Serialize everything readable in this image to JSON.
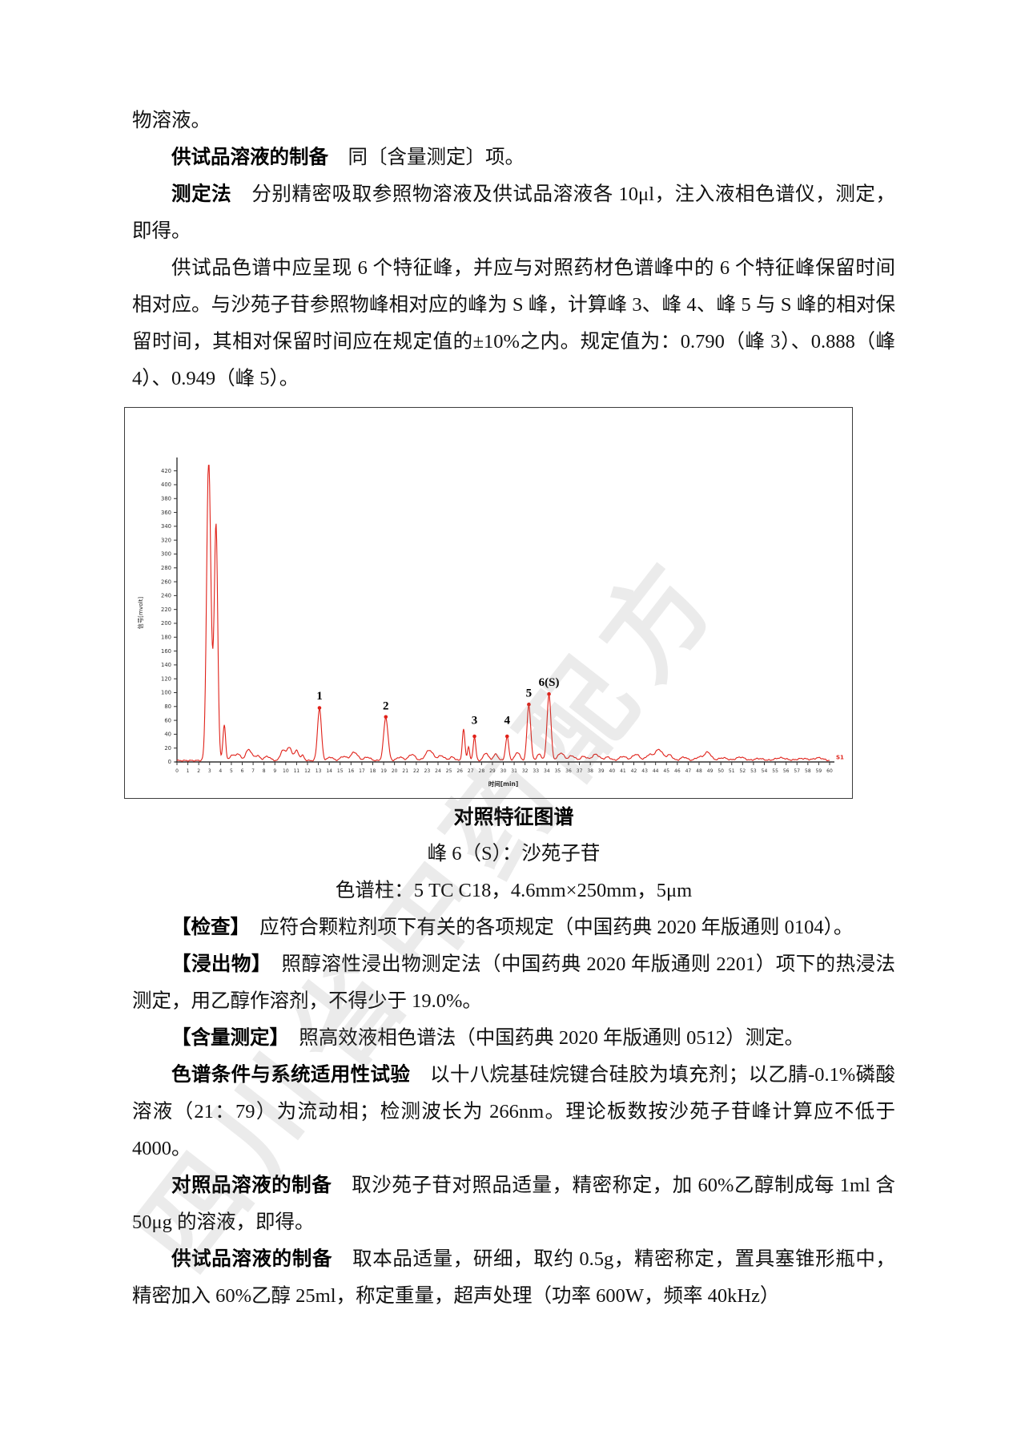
{
  "watermark": {
    "text": "四川省中药配方"
  },
  "paragraphs_top": [
    {
      "indent": false,
      "segments": [
        {
          "t": "物溶液。",
          "b": false
        }
      ]
    },
    {
      "indent": true,
      "segments": [
        {
          "t": "供试品溶液的制备",
          "b": true
        },
        {
          "t": "　同〔含量测定〕项。",
          "b": false
        }
      ]
    },
    {
      "indent": true,
      "segments": [
        {
          "t": "测定法",
          "b": true
        },
        {
          "t": "　分别精密吸取参照物溶液及供试品溶液各 10μl，注入液相色谱仪，测定，即得。",
          "b": false
        }
      ]
    },
    {
      "indent": true,
      "segments": [
        {
          "t": "供试品色谱中应呈现 6 个特征峰，并应与对照药材色谱峰中的 6 个特征峰保留时间相对应。与沙苑子苷参照物峰相对应的峰为 S 峰，计算峰 3、峰 4、峰 5 与 S 峰的相对保留时间，其相对保留时间应在规定值的±10%之内。规定值为：0.790（峰 3）、0.888（峰 4）、0.949（峰 5）。",
          "b": false
        }
      ]
    }
  ],
  "figure": {
    "caption_title": "对照特征图谱",
    "caption_peak": "峰 6（S）：沙苑子苷",
    "caption_column": "色谱柱：5 TC C18，4.6mm×250mm，5μm"
  },
  "paragraphs_bottom": [
    {
      "indent": true,
      "segments": [
        {
          "t": "【检查】",
          "b": true
        },
        {
          "t": "　应符合颗粒剂项下有关的各项规定（中国药典 2020 年版通则 0104）。",
          "b": false
        }
      ]
    },
    {
      "indent": true,
      "segments": [
        {
          "t": "【浸出物】",
          "b": true
        },
        {
          "t": "　照醇溶性浸出物测定法（中国药典 2020 年版通则 2201）项下的热浸法测定，用乙醇作溶剂，不得少于 19.0%。",
          "b": false
        }
      ]
    },
    {
      "indent": true,
      "segments": [
        {
          "t": "【含量测定】",
          "b": true
        },
        {
          "t": "　照高效液相色谱法（中国药典 2020 年版通则 0512）测定。",
          "b": false
        }
      ]
    },
    {
      "indent": true,
      "segments": [
        {
          "t": "色谱条件与系统适用性试验",
          "b": true
        },
        {
          "t": "　以十八烷基硅烷键合硅胶为填充剂；以乙腈-0.1%磷酸溶液（21：79）为流动相；检测波长为 266nm。理论板数按沙苑子苷峰计算应不低于 4000。",
          "b": false
        }
      ]
    },
    {
      "indent": true,
      "segments": [
        {
          "t": "对照品溶液的制备",
          "b": true
        },
        {
          "t": "　取沙苑子苷对照品适量，精密称定，加 60%乙醇制成每 1ml 含 50μg 的溶液，即得。",
          "b": false
        }
      ]
    },
    {
      "indent": true,
      "segments": [
        {
          "t": "供试品溶液的制备",
          "b": true
        },
        {
          "t": "　取本品适量，研细，取约 0.5g，精密称定，置具塞锥形瓶中，精密加入 60%乙醇 25ml，称定重量，超声处理（功率 600W，频率 40kHz）",
          "b": false
        }
      ]
    }
  ],
  "chart_data": {
    "type": "line",
    "title": "对照特征图谱",
    "xlabel": "时间[min]",
    "ylabel": "信号[mvolt]",
    "xlim": [
      0,
      60
    ],
    "ylim": [
      0,
      430
    ],
    "x_tick_step": 1,
    "y_tick_step": 20,
    "y_tick_max": 420,
    "grid": false,
    "line_color": "#e02119",
    "axis_color": "#333333",
    "end_label": "S1",
    "baseline_mv": 2,
    "peaks": [
      [
        2.9,
        390,
        0.18
      ],
      [
        3.25,
        90,
        0.3
      ],
      [
        3.6,
        295,
        0.15
      ],
      [
        4.35,
        52,
        0.12
      ],
      [
        5.05,
        8,
        0.18
      ],
      [
        5.6,
        10,
        0.22
      ],
      [
        6.6,
        16,
        0.28
      ],
      [
        7.4,
        7,
        0.22
      ],
      [
        8.3,
        6,
        0.28
      ],
      [
        9.7,
        14,
        0.2
      ],
      [
        10.3,
        19,
        0.25
      ],
      [
        11.0,
        14,
        0.2
      ],
      [
        11.55,
        7,
        0.15
      ],
      [
        13.1,
        75,
        0.18
      ],
      [
        14.1,
        5,
        0.25
      ],
      [
        15.3,
        6,
        0.28
      ],
      [
        16.3,
        12,
        0.32
      ],
      [
        17.5,
        5,
        0.28
      ],
      [
        19.2,
        62,
        0.2
      ],
      [
        20.5,
        5,
        0.28
      ],
      [
        21.6,
        9,
        0.3
      ],
      [
        23.2,
        15,
        0.35
      ],
      [
        24.3,
        7,
        0.28
      ],
      [
        25.3,
        5,
        0.25
      ],
      [
        26.35,
        45,
        0.12
      ],
      [
        26.8,
        20,
        0.1
      ],
      [
        27.35,
        34,
        0.12
      ],
      [
        28.4,
        11,
        0.22
      ],
      [
        29.3,
        9,
        0.22
      ],
      [
        30.35,
        34,
        0.15
      ],
      [
        31.3,
        12,
        0.22
      ],
      [
        32.35,
        80,
        0.17
      ],
      [
        33.3,
        9,
        0.22
      ],
      [
        34.2,
        95,
        0.18
      ],
      [
        35.3,
        11,
        0.28
      ],
      [
        36.3,
        7,
        0.28
      ],
      [
        37.4,
        6,
        0.28
      ],
      [
        38.5,
        9,
        0.33
      ],
      [
        39.6,
        5,
        0.28
      ],
      [
        41.0,
        6,
        0.33
      ],
      [
        42.2,
        9,
        0.33
      ],
      [
        43.4,
        8,
        0.28
      ],
      [
        44.3,
        16,
        0.36
      ],
      [
        45.3,
        8,
        0.26
      ],
      [
        46.6,
        5,
        0.3
      ],
      [
        48.0,
        5,
        0.32
      ],
      [
        48.8,
        12,
        0.3
      ],
      [
        50.2,
        4,
        0.4
      ],
      [
        51.8,
        5,
        0.4
      ],
      [
        53.5,
        3,
        0.4
      ],
      [
        55.5,
        4,
        0.5
      ],
      [
        57.5,
        3,
        0.5
      ],
      [
        59.0,
        4,
        0.4
      ]
    ],
    "labeled_peaks": [
      {
        "label": "1",
        "t": 13.1,
        "h": 75,
        "dy": 15
      },
      {
        "label": "2",
        "t": 19.2,
        "h": 62,
        "dy": 14
      },
      {
        "label": "3",
        "t": 27.35,
        "h": 34,
        "dy": 21
      },
      {
        "label": "4",
        "t": 30.35,
        "h": 34,
        "dy": 21
      },
      {
        "label": "5",
        "t": 32.35,
        "h": 80,
        "dy": 14
      },
      {
        "label": "6(S)",
        "t": 34.2,
        "h": 95,
        "dy": 15
      }
    ]
  }
}
